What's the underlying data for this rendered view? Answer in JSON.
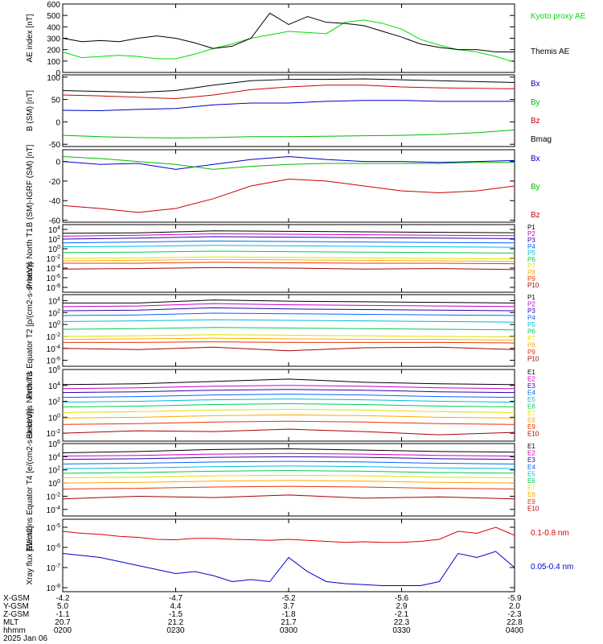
{
  "chart_data": [
    {
      "type": "line",
      "panel": "ae_index",
      "ylabel": "AE index [nT]",
      "ylim": [
        0,
        600
      ],
      "ylog": false,
      "yticks": [
        0,
        100,
        200,
        300,
        400,
        500,
        600
      ],
      "yticklabels": [
        "0",
        "100",
        "200",
        "300",
        "400",
        "500",
        "600"
      ],
      "x": [
        0,
        5,
        10,
        15,
        20,
        25,
        30,
        35,
        40,
        45,
        50,
        55,
        60,
        65,
        70,
        75,
        80,
        85,
        90,
        95,
        100,
        105,
        110,
        115,
        120
      ],
      "series": [
        {
          "name": "Kyoto proxy AE",
          "color": "#00dd00",
          "values": [
            180,
            130,
            140,
            150,
            140,
            120,
            120,
            160,
            210,
            250,
            300,
            330,
            360,
            350,
            340,
            440,
            460,
            430,
            380,
            290,
            240,
            200,
            180,
            140,
            90
          ]
        },
        {
          "name": "Themis AE",
          "color": "#000000",
          "values": [
            300,
            270,
            280,
            270,
            300,
            320,
            300,
            260,
            210,
            230,
            300,
            520,
            420,
            490,
            440,
            430,
            410,
            360,
            310,
            250,
            220,
            200,
            200,
            180,
            180
          ]
        }
      ]
    },
    {
      "type": "line",
      "panel": "b_sm",
      "ylabel": "B (SM) [nT]",
      "ylim": [
        -55,
        105
      ],
      "ylog": false,
      "yticks": [
        -50,
        0,
        50,
        100
      ],
      "yticklabels": [
        "-50",
        "0",
        "50",
        "100"
      ],
      "x": [
        0,
        10,
        20,
        30,
        40,
        50,
        60,
        70,
        80,
        90,
        100,
        110,
        120
      ],
      "series": [
        {
          "name": "Bx",
          "color": "#0000cc",
          "values": [
            26,
            25,
            28,
            30,
            38,
            42,
            42,
            46,
            48,
            48,
            46,
            46,
            46
          ]
        },
        {
          "name": "By",
          "color": "#00bb00",
          "values": [
            -30,
            -33,
            -35,
            -36,
            -35,
            -33,
            -33,
            -32,
            -31,
            -30,
            -28,
            -24,
            -18
          ]
        },
        {
          "name": "Bz",
          "color": "#cc0000",
          "values": [
            60,
            58,
            55,
            52,
            60,
            72,
            78,
            82,
            82,
            78,
            76,
            75,
            74
          ]
        },
        {
          "name": "Bmag",
          "color": "#000000",
          "values": [
            70,
            68,
            66,
            70,
            82,
            92,
            95,
            95,
            96,
            94,
            92,
            90,
            88
          ]
        }
      ]
    },
    {
      "type": "line",
      "panel": "b_minus_igrf",
      "ylabel": "B (SM)-IGRF (SM) [nT]",
      "ylim": [
        -62,
        12
      ],
      "ylog": false,
      "yticks": [
        -60,
        -40,
        -20,
        0
      ],
      "yticklabels": [
        "-60",
        "-40",
        "-20",
        "0"
      ],
      "x": [
        0,
        10,
        20,
        30,
        40,
        50,
        60,
        70,
        80,
        90,
        100,
        110,
        120
      ],
      "series": [
        {
          "name": "Bx",
          "color": "#0000cc",
          "values": [
            0,
            -3,
            -2,
            -8,
            -3,
            2,
            5,
            2,
            0,
            0,
            -1,
            0,
            1
          ]
        },
        {
          "name": "By",
          "color": "#00bb00",
          "values": [
            5,
            3,
            0,
            -3,
            -8,
            -5,
            -3,
            -2,
            -2,
            -2,
            -2,
            -1,
            -1
          ]
        },
        {
          "name": "Bz",
          "color": "#cc0000",
          "values": [
            -45,
            -48,
            -52,
            -48,
            -38,
            -25,
            -18,
            -20,
            -25,
            -30,
            -32,
            -30,
            -25
          ]
        }
      ]
    },
    {
      "type": "line",
      "panel": "protons_north",
      "ylabel": "Protons North T1",
      "ylog": true,
      "ylim_exp": [
        -9,
        5
      ],
      "yticks_exp": [
        -8,
        -6,
        -4,
        -2,
        0,
        2,
        4
      ],
      "yticklabels": [
        "10-8",
        "10-6",
        "10-4",
        "10-2",
        "100",
        "102",
        "104"
      ],
      "x": [
        0,
        20,
        40,
        60,
        80,
        100,
        120
      ],
      "series": [
        {
          "name": "P1",
          "color": "#000000",
          "values_exp": [
            3.2,
            3.3,
            3.7,
            3.6,
            3.5,
            3.4,
            3.3
          ]
        },
        {
          "name": "P2",
          "color": "#cc00cc",
          "values_exp": [
            2.6,
            2.8,
            3.1,
            3.0,
            2.9,
            2.8,
            2.7
          ]
        },
        {
          "name": "P3",
          "color": "#3300aa",
          "values_exp": [
            2.0,
            2.2,
            2.5,
            2.4,
            2.3,
            2.2,
            2.1
          ]
        },
        {
          "name": "P4",
          "color": "#0066ff",
          "values_exp": [
            1.2,
            1.4,
            1.6,
            1.5,
            1.4,
            1.3,
            1.2
          ]
        },
        {
          "name": "P5",
          "color": "#00bbdd",
          "values_exp": [
            0.4,
            0.5,
            0.7,
            0.6,
            0.5,
            0.4,
            0.3
          ]
        },
        {
          "name": "P6",
          "color": "#00cc55",
          "values_exp": [
            -0.8,
            -0.7,
            -0.5,
            -0.6,
            -0.7,
            -0.8,
            -0.9
          ]
        },
        {
          "name": "P7",
          "color": "#e0e000",
          "values_exp": [
            -2.0,
            -1.9,
            -1.7,
            -1.8,
            -1.9,
            -2.0,
            -2.1
          ]
        },
        {
          "name": "P8",
          "color": "#ffaa00",
          "values_exp": [
            -2.5,
            -2.4,
            -2.2,
            -2.3,
            -2.4,
            -2.5,
            -2.6
          ]
        },
        {
          "name": "P9",
          "color": "#ee3300",
          "values_exp": [
            -3.0,
            -3.0,
            -2.8,
            -2.9,
            -3.0,
            -3.0,
            -3.1
          ]
        },
        {
          "name": "P10",
          "color": "#aa0000",
          "values_exp": [
            -4.2,
            -4.1,
            -3.9,
            -4.0,
            -4.2,
            -4.1,
            -4.3
          ]
        }
      ]
    },
    {
      "type": "line",
      "panel": "protons_equator",
      "ylabel": "Protons Equator T2 [p/(cm2-s-sr-keV)]",
      "ylog": true,
      "ylim_exp": [
        -7,
        5
      ],
      "yticks_exp": [
        -6,
        -4,
        -2,
        0,
        2,
        4
      ],
      "yticklabels": [
        "10-6",
        "10-4",
        "10-2",
        "100",
        "102",
        "104"
      ],
      "x": [
        0,
        20,
        40,
        60,
        80,
        100,
        120
      ],
      "series": [
        {
          "name": "P1",
          "color": "#000000",
          "values_exp": [
            3.6,
            3.6,
            4.1,
            3.9,
            3.8,
            3.7,
            3.6
          ]
        },
        {
          "name": "P2",
          "color": "#cc00cc",
          "values_exp": [
            3.0,
            3.1,
            3.5,
            3.3,
            3.2,
            3.1,
            3.0
          ]
        },
        {
          "name": "P3",
          "color": "#3300aa",
          "values_exp": [
            2.3,
            2.4,
            2.8,
            2.6,
            2.5,
            2.4,
            2.3
          ]
        },
        {
          "name": "P4",
          "color": "#0066ff",
          "values_exp": [
            1.5,
            1.6,
            1.9,
            1.8,
            1.7,
            1.6,
            1.5
          ]
        },
        {
          "name": "P5",
          "color": "#00bbdd",
          "values_exp": [
            0.5,
            0.6,
            0.8,
            0.7,
            0.6,
            0.5,
            0.4
          ]
        },
        {
          "name": "P6",
          "color": "#00cc55",
          "values_exp": [
            -0.8,
            -0.7,
            -0.5,
            -0.6,
            -0.7,
            -0.8,
            -0.9
          ]
        },
        {
          "name": "P7",
          "color": "#e0e000",
          "values_exp": [
            -2.0,
            -1.9,
            -1.7,
            -1.8,
            -1.9,
            -2.0,
            -2.1
          ]
        },
        {
          "name": "P8",
          "color": "#ffaa00",
          "values_exp": [
            -2.5,
            -2.4,
            -2.3,
            -2.4,
            -2.5,
            -2.5,
            -2.6
          ]
        },
        {
          "name": "P9",
          "color": "#ee3300",
          "values_exp": [
            -3.0,
            -3.0,
            -2.9,
            -3.0,
            -3.0,
            -3.0,
            -3.1
          ]
        },
        {
          "name": "P10",
          "color": "#aa0000",
          "values_exp": [
            -4.0,
            -4.2,
            -3.8,
            -4.4,
            -3.9,
            -3.8,
            -4.2
          ]
        }
      ]
    },
    {
      "type": "line",
      "panel": "electrons_north",
      "ylabel": "Electrons North T3",
      "ylog": true,
      "ylim_exp": [
        -3,
        6
      ],
      "yticks_exp": [
        -2,
        0,
        2,
        4,
        6
      ],
      "yticklabels": [
        "10-2",
        "100",
        "102",
        "104",
        "106"
      ],
      "x": [
        0,
        20,
        40,
        60,
        80,
        100,
        120
      ],
      "series": [
        {
          "name": "E1",
          "color": "#000000",
          "values_exp": [
            4.1,
            4.2,
            4.5,
            4.8,
            4.4,
            4.2,
            4.1
          ]
        },
        {
          "name": "E2",
          "color": "#cc00cc",
          "values_exp": [
            3.6,
            3.7,
            3.9,
            4.0,
            3.9,
            3.7,
            3.6
          ]
        },
        {
          "name": "E3",
          "color": "#3300aa",
          "values_exp": [
            3.1,
            3.2,
            3.4,
            3.5,
            3.4,
            3.2,
            3.1
          ]
        },
        {
          "name": "E4",
          "color": "#0066ff",
          "values_exp": [
            2.5,
            2.6,
            2.8,
            2.9,
            2.8,
            2.6,
            2.5
          ]
        },
        {
          "name": "E5",
          "color": "#00bbdd",
          "values_exp": [
            1.9,
            2.0,
            2.2,
            2.3,
            2.2,
            2.0,
            1.9
          ]
        },
        {
          "name": "E6",
          "color": "#00cc55",
          "values_exp": [
            1.3,
            1.4,
            1.6,
            1.7,
            1.6,
            1.4,
            1.3
          ]
        },
        {
          "name": "E7",
          "color": "#e0e000",
          "values_exp": [
            0.6,
            0.7,
            0.9,
            1.0,
            0.9,
            0.7,
            0.6
          ]
        },
        {
          "name": "E8",
          "color": "#ffaa00",
          "values_exp": [
            -0.1,
            0.0,
            0.2,
            0.3,
            0.2,
            0.0,
            -0.1
          ]
        },
        {
          "name": "E9",
          "color": "#ee3300",
          "values_exp": [
            -0.9,
            -0.8,
            -0.6,
            -0.5,
            -0.6,
            -0.8,
            -0.9
          ]
        },
        {
          "name": "E10",
          "color": "#aa0000",
          "values_exp": [
            -2.0,
            -1.7,
            -1.8,
            -1.5,
            -1.8,
            -2.2,
            -1.9
          ]
        }
      ]
    },
    {
      "type": "line",
      "panel": "electrons_equator",
      "ylabel": "Electrons Equator T4 [e/(cm2-s-sr-keV)]",
      "ylog": true,
      "ylim_exp": [
        -5,
        6
      ],
      "yticks_exp": [
        -4,
        -2,
        0,
        2,
        4,
        6
      ],
      "yticklabels": [
        "10-4",
        "10-2",
        "100",
        "102",
        "104",
        "106"
      ],
      "x": [
        0,
        20,
        40,
        60,
        80,
        100,
        120
      ],
      "series": [
        {
          "name": "E1",
          "color": "#000000",
          "values_exp": [
            4.6,
            4.8,
            5.1,
            5.2,
            5.0,
            4.8,
            4.7
          ]
        },
        {
          "name": "E2",
          "color": "#cc00cc",
          "values_exp": [
            4.1,
            4.2,
            4.4,
            4.5,
            4.4,
            4.2,
            4.1
          ]
        },
        {
          "name": "E3",
          "color": "#3300aa",
          "values_exp": [
            3.6,
            3.7,
            3.9,
            4.0,
            3.9,
            3.7,
            3.6
          ]
        },
        {
          "name": "E4",
          "color": "#0066ff",
          "values_exp": [
            2.9,
            3.0,
            3.2,
            3.3,
            3.2,
            3.0,
            2.9
          ]
        },
        {
          "name": "E5",
          "color": "#00bbdd",
          "values_exp": [
            2.2,
            2.3,
            2.5,
            2.6,
            2.5,
            2.3,
            2.2
          ]
        },
        {
          "name": "E6",
          "color": "#00cc55",
          "values_exp": [
            1.5,
            1.6,
            1.8,
            1.9,
            1.8,
            1.6,
            1.5
          ]
        },
        {
          "name": "E7",
          "color": "#e0e000",
          "values_exp": [
            0.8,
            0.9,
            1.1,
            1.2,
            1.1,
            0.9,
            0.8
          ]
        },
        {
          "name": "E8",
          "color": "#ffaa00",
          "values_exp": [
            0.0,
            0.1,
            0.3,
            0.4,
            0.3,
            0.1,
            0.0
          ]
        },
        {
          "name": "E9",
          "color": "#ee3300",
          "values_exp": [
            -0.9,
            -0.8,
            -0.6,
            -0.5,
            -0.6,
            -0.8,
            -0.9
          ]
        },
        {
          "name": "E10",
          "color": "#aa0000",
          "values_exp": [
            -2.4,
            -2.0,
            -2.2,
            -1.8,
            -2.3,
            -2.1,
            -2.4
          ]
        }
      ]
    },
    {
      "type": "line",
      "panel": "xray",
      "ylabel": "Xray flux [W/m2]",
      "ylog": true,
      "ylim_exp": [
        -8.2,
        -4.6
      ],
      "yticks_exp": [
        -8,
        -7,
        -6,
        -5
      ],
      "yticklabels": [
        "10-8",
        "10-7",
        "10-6",
        "10-5"
      ],
      "x": [
        0,
        5,
        10,
        15,
        20,
        25,
        30,
        35,
        40,
        45,
        50,
        55,
        60,
        65,
        70,
        75,
        80,
        85,
        90,
        95,
        100,
        105,
        110,
        115,
        120
      ],
      "series": [
        {
          "name": "0.1-0.8 nm",
          "color": "#dd0000",
          "values_exp": [
            -5.2,
            -5.3,
            -5.35,
            -5.45,
            -5.5,
            -5.6,
            -5.62,
            -5.55,
            -5.55,
            -5.6,
            -5.62,
            -5.65,
            -5.6,
            -5.65,
            -5.7,
            -5.75,
            -5.72,
            -5.75,
            -5.75,
            -5.7,
            -5.6,
            -5.2,
            -5.3,
            -5.0,
            -5.4
          ]
        },
        {
          "name": "0.05-0.4 nm",
          "color": "#0000cc",
          "values_exp": [
            -6.3,
            -6.4,
            -6.5,
            -6.7,
            -6.9,
            -7.1,
            -7.3,
            -7.2,
            -7.4,
            -7.7,
            -7.6,
            -7.7,
            -6.5,
            -7.2,
            -7.7,
            -7.8,
            -7.85,
            -7.9,
            -7.9,
            -7.9,
            -7.7,
            -6.3,
            -6.5,
            -6.2,
            -7.0
          ]
        }
      ]
    }
  ],
  "xaxis": {
    "tick_minutes": [
      0,
      30,
      60,
      90,
      120
    ],
    "row_labels": [
      "X-GSM",
      "Y-GSM",
      "Z-GSM",
      "MLT",
      "hhmm"
    ],
    "rows": [
      [
        "-4.2",
        "-4.7",
        "-5.2",
        "-5.6",
        "-5.9"
      ],
      [
        "5.0",
        "4.4",
        "3.7",
        "2.9",
        "2.0"
      ],
      [
        "-1.1",
        "-1.5",
        "-1.8",
        "-2.1",
        "-2.3"
      ],
      [
        "20.7",
        "21.2",
        "21.7",
        "22.3",
        "22.8"
      ],
      [
        "0200",
        "0230",
        "0300",
        "0330",
        "0400"
      ]
    ],
    "date": "2025 Jan 06"
  }
}
